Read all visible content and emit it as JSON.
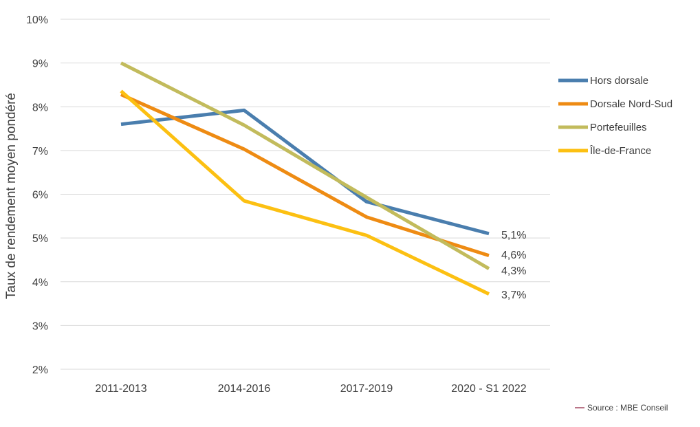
{
  "chart_data": {
    "type": "line",
    "categories": [
      "2011-2013",
      "2014-2016",
      "2017-2019",
      "2020 - S1 2022"
    ],
    "ylabel": "Taux de rendement moyen pondéré",
    "xlabel": "",
    "ylim": [
      2,
      10
    ],
    "yticks": [
      "2%",
      "3%",
      "4%",
      "5%",
      "6%",
      "7%",
      "8%",
      "9%",
      "10%"
    ],
    "grid": true,
    "legend_position": "right",
    "series": [
      {
        "name": "Hors dorsale",
        "color": "#4a7eae",
        "values": [
          7.6,
          7.92,
          5.83,
          5.1
        ],
        "end_label": "5,1%"
      },
      {
        "name": "Dorsale Nord-Sud",
        "color": "#ee8b13",
        "values": [
          8.28,
          7.03,
          5.48,
          4.6
        ],
        "end_label": "4,6%"
      },
      {
        "name": "Portefeuilles",
        "color": "#c2bb5c",
        "values": [
          9.0,
          7.58,
          5.93,
          4.3
        ],
        "end_label": "4,3%"
      },
      {
        "name": "Île-de-France",
        "color": "#fcc012",
        "values": [
          8.36,
          5.85,
          5.06,
          3.72
        ],
        "end_label": "3,7%"
      }
    ],
    "source": "Source : MBE Conseil",
    "source_color": "#8b1a3a"
  }
}
